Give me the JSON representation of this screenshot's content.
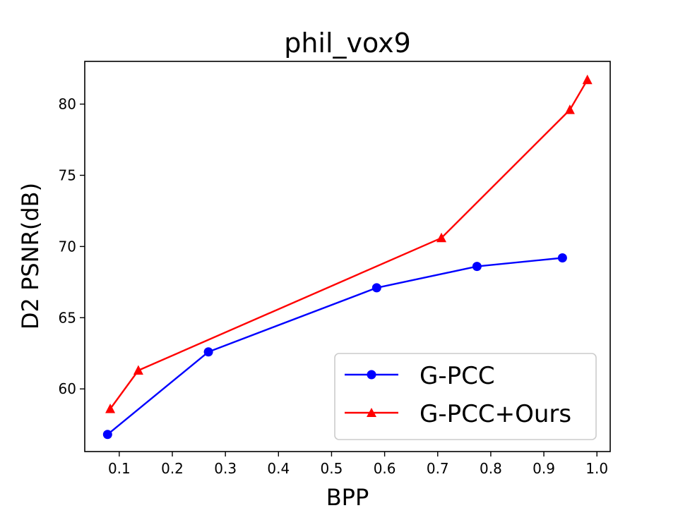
{
  "chart_data": {
    "type": "line",
    "title": "phil_vox9",
    "xlabel": "BPP",
    "ylabel": "D2 PSNR(dB)",
    "xlim": [
      0.035,
      1.025
    ],
    "ylim": [
      55.6,
      83.0
    ],
    "xticks": [
      0.1,
      0.2,
      0.3,
      0.4,
      0.5,
      0.6,
      0.7,
      0.8,
      0.9,
      1.0
    ],
    "xtick_labels": [
      "0.1",
      "0.2",
      "0.3",
      "0.4",
      "0.5",
      "0.6",
      "0.7",
      "0.8",
      "0.9",
      "1.0"
    ],
    "yticks": [
      60,
      65,
      70,
      75,
      80
    ],
    "ytick_labels": [
      "60",
      "65",
      "70",
      "75",
      "80"
    ],
    "grid": false,
    "legend_position": "lower-right",
    "series": [
      {
        "name": "G-PCC",
        "color": "#0000ff",
        "marker": "circle",
        "x": [
          0.078,
          0.268,
          0.585,
          0.774,
          0.935
        ],
        "y": [
          56.8,
          62.6,
          67.1,
          68.6,
          69.2
        ]
      },
      {
        "name": "G-PCC+Ours",
        "color": "#ff0000",
        "marker": "triangle",
        "x": [
          0.083,
          0.136,
          0.707,
          0.949,
          0.982
        ],
        "y": [
          58.6,
          61.3,
          70.6,
          79.6,
          81.7
        ]
      }
    ]
  }
}
